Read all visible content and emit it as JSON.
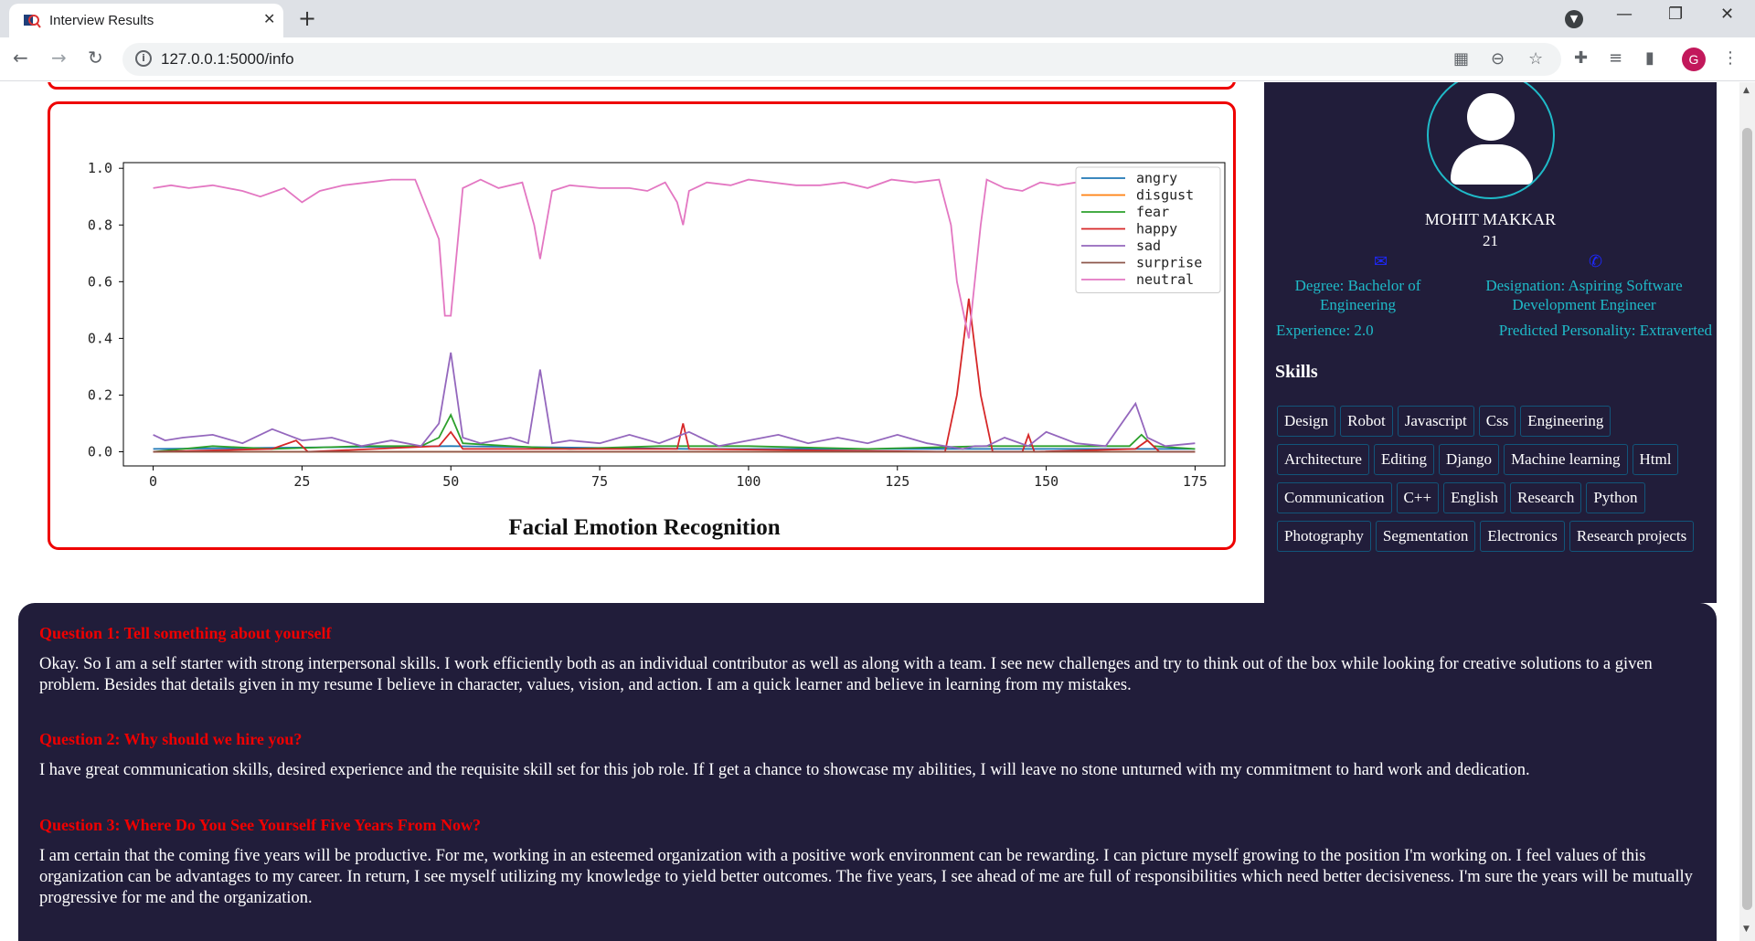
{
  "browser": {
    "tab_title": "Interview Results",
    "url": "127.0.0.1:5000/info",
    "profile_initial": "G"
  },
  "icons": {
    "favicon": "magnifier-favicon-icon",
    "tab_close": "close-icon",
    "new_tab": "plus-icon",
    "tab_search": "chevron-down-icon",
    "minimize": "minimize-icon",
    "restore": "restore-icon",
    "close_window": "close-icon",
    "back": "arrow-left-icon",
    "forward": "arrow-right-icon",
    "reload": "reload-icon",
    "site_info": "info-icon",
    "qr": "qr-code-icon",
    "zoom": "zoom-icon",
    "bookmark": "star-icon",
    "extensions": "puzzle-icon",
    "reading_list": "reading-list-icon",
    "side_panel": "side-panel-icon",
    "menu": "kebab-menu-icon",
    "email": "envelope-icon",
    "phone": "phone-icon",
    "user": "user-avatar-icon"
  },
  "colors": {
    "panel_bg": "#211d3a",
    "accent_teal": "#1fbac8",
    "question_red": "#e00000",
    "card_border": "#e00000"
  },
  "chart": {
    "title": "Facial Emotion Recognition",
    "chart_data": {
      "type": "line",
      "title": "",
      "xlabel": "",
      "ylabel": "",
      "xlim": [
        -5,
        180
      ],
      "ylim": [
        -0.05,
        1.02
      ],
      "x_ticks": [
        0,
        25,
        50,
        75,
        100,
        125,
        150,
        175
      ],
      "y_ticks": [
        0.0,
        0.2,
        0.4,
        0.6,
        0.8,
        1.0
      ],
      "grid": false,
      "legend_position": "top-right",
      "series": [
        {
          "name": "angry",
          "color": "#1f77b4",
          "points": [
            [
              0,
              0.01
            ],
            [
              50,
              0.02
            ],
            [
              90,
              0.01
            ],
            [
              137,
              0.01
            ],
            [
              175,
              0.01
            ]
          ]
        },
        {
          "name": "disgust",
          "color": "#ff7f0e",
          "points": [
            [
              0,
              0.0
            ],
            [
              175,
              0.0
            ]
          ]
        },
        {
          "name": "fear",
          "color": "#2ca02c",
          "points": [
            [
              0,
              0.0
            ],
            [
              10,
              0.02
            ],
            [
              20,
              0.01
            ],
            [
              35,
              0.02
            ],
            [
              45,
              0.02
            ],
            [
              48,
              0.05
            ],
            [
              50,
              0.13
            ],
            [
              52,
              0.03
            ],
            [
              60,
              0.02
            ],
            [
              70,
              0.01
            ],
            [
              85,
              0.02
            ],
            [
              100,
              0.02
            ],
            [
              120,
              0.01
            ],
            [
              140,
              0.02
            ],
            [
              164,
              0.02
            ],
            [
              166,
              0.06
            ],
            [
              168,
              0.02
            ],
            [
              175,
              0.01
            ]
          ]
        },
        {
          "name": "happy",
          "color": "#d62728",
          "points": [
            [
              0,
              0.0
            ],
            [
              20,
              0.01
            ],
            [
              24,
              0.04
            ],
            [
              26,
              0.0
            ],
            [
              48,
              0.02
            ],
            [
              50,
              0.07
            ],
            [
              52,
              0.01
            ],
            [
              88,
              0.01
            ],
            [
              89,
              0.1
            ],
            [
              90,
              0.01
            ],
            [
              133,
              0.0
            ],
            [
              135,
              0.2
            ],
            [
              137,
              0.54
            ],
            [
              139,
              0.2
            ],
            [
              141,
              0.0
            ],
            [
              146,
              0.0
            ],
            [
              147,
              0.06
            ],
            [
              148,
              0.0
            ],
            [
              165,
              0.01
            ],
            [
              167,
              0.04
            ],
            [
              169,
              0.0
            ],
            [
              175,
              0.0
            ]
          ]
        },
        {
          "name": "sad",
          "color": "#9467bd",
          "points": [
            [
              0,
              0.06
            ],
            [
              2,
              0.04
            ],
            [
              5,
              0.05
            ],
            [
              10,
              0.06
            ],
            [
              15,
              0.03
            ],
            [
              20,
              0.08
            ],
            [
              25,
              0.04
            ],
            [
              30,
              0.05
            ],
            [
              35,
              0.02
            ],
            [
              40,
              0.04
            ],
            [
              45,
              0.02
            ],
            [
              48,
              0.1
            ],
            [
              50,
              0.35
            ],
            [
              52,
              0.05
            ],
            [
              55,
              0.03
            ],
            [
              60,
              0.05
            ],
            [
              63,
              0.03
            ],
            [
              65,
              0.29
            ],
            [
              67,
              0.03
            ],
            [
              70,
              0.04
            ],
            [
              75,
              0.03
            ],
            [
              80,
              0.06
            ],
            [
              85,
              0.03
            ],
            [
              90,
              0.07
            ],
            [
              95,
              0.02
            ],
            [
              100,
              0.04
            ],
            [
              105,
              0.06
            ],
            [
              110,
              0.03
            ],
            [
              115,
              0.05
            ],
            [
              120,
              0.03
            ],
            [
              125,
              0.06
            ],
            [
              130,
              0.03
            ],
            [
              136,
              0.01
            ],
            [
              138,
              0.02
            ],
            [
              140,
              0.02
            ],
            [
              143,
              0.05
            ],
            [
              147,
              0.02
            ],
            [
              150,
              0.07
            ],
            [
              155,
              0.03
            ],
            [
              160,
              0.02
            ],
            [
              165,
              0.17
            ],
            [
              167,
              0.05
            ],
            [
              170,
              0.02
            ],
            [
              175,
              0.03
            ]
          ]
        },
        {
          "name": "surprise",
          "color": "#8c564b",
          "points": [
            [
              0,
              0.0
            ],
            [
              175,
              0.0
            ]
          ]
        },
        {
          "name": "neutral",
          "color": "#e377c2",
          "points": [
            [
              0,
              0.93
            ],
            [
              3,
              0.94
            ],
            [
              6,
              0.93
            ],
            [
              10,
              0.94
            ],
            [
              15,
              0.92
            ],
            [
              18,
              0.9
            ],
            [
              22,
              0.93
            ],
            [
              25,
              0.88
            ],
            [
              28,
              0.92
            ],
            [
              32,
              0.94
            ],
            [
              36,
              0.95
            ],
            [
              40,
              0.96
            ],
            [
              44,
              0.96
            ],
            [
              48,
              0.75
            ],
            [
              49,
              0.48
            ],
            [
              50,
              0.48
            ],
            [
              52,
              0.93
            ],
            [
              55,
              0.96
            ],
            [
              58,
              0.93
            ],
            [
              62,
              0.95
            ],
            [
              64,
              0.8
            ],
            [
              65,
              0.68
            ],
            [
              67,
              0.92
            ],
            [
              70,
              0.94
            ],
            [
              75,
              0.93
            ],
            [
              80,
              0.93
            ],
            [
              83,
              0.92
            ],
            [
              86,
              0.95
            ],
            [
              88,
              0.88
            ],
            [
              89,
              0.8
            ],
            [
              90,
              0.92
            ],
            [
              93,
              0.95
            ],
            [
              97,
              0.94
            ],
            [
              100,
              0.96
            ],
            [
              104,
              0.95
            ],
            [
              108,
              0.94
            ],
            [
              112,
              0.94
            ],
            [
              116,
              0.95
            ],
            [
              120,
              0.93
            ],
            [
              124,
              0.96
            ],
            [
              128,
              0.95
            ],
            [
              132,
              0.96
            ],
            [
              134,
              0.8
            ],
            [
              135,
              0.6
            ],
            [
              137,
              0.4
            ],
            [
              139,
              0.8
            ],
            [
              140,
              0.96
            ],
            [
              143,
              0.93
            ],
            [
              146,
              0.92
            ],
            [
              149,
              0.95
            ],
            [
              152,
              0.94
            ],
            [
              155,
              0.95
            ],
            [
              158,
              0.96
            ],
            [
              161,
              0.94
            ],
            [
              164,
              0.95
            ],
            [
              166,
              0.8
            ],
            [
              168,
              0.92
            ],
            [
              172,
              0.94
            ],
            [
              175,
              0.95
            ]
          ]
        }
      ]
    }
  },
  "profile": {
    "name": "MOHIT MAKKAR",
    "age": "21",
    "degree": "Degree: Bachelor of Engineering",
    "designation": "Designation: Aspiring Software Development Engineer",
    "experience": "Experience: 2.0",
    "personality": "Predicted Personality: Extraverted",
    "skills_heading": "Skills",
    "skills": [
      "Design",
      "Robot",
      "Javascript",
      "Css",
      "Engineering",
      "Architecture",
      "Editing",
      "Django",
      "Machine learning",
      "Html",
      "Communication",
      "C++",
      "English",
      "Research",
      "Python",
      "Photography",
      "Segmentation",
      "Electronics",
      "Research projects"
    ]
  },
  "questions": [
    {
      "title": "Question 1: Tell something about yourself",
      "answer": "Okay. So I am a self starter with strong interpersonal skills. I work efficiently both as an individual contributor as well as along with a team. I see new challenges and try to think out of the box while looking for creative solutions to a given problem. Besides that details given in my resume I believe in character, values, vision, and action. I am a quick learner and believe in learning from my mistakes."
    },
    {
      "title": "Question 2: Why should we hire you?",
      "answer": "I have great communication skills, desired experience and the requisite skill set for this job role. If I get a chance to showcase my abilities, I will leave no stone unturned with my commitment to hard work and dedication."
    },
    {
      "title": "Question 3: Where Do You See Yourself Five Years From Now?",
      "answer": "I am certain that the coming five years will be productive. For me, working in an esteemed organization with a positive work environment can be rewarding. I can picture myself growing to the position I'm working on. I feel values of this organization can be advantages to my career. In return, I see myself utilizing my knowledge to yield better outcomes. The five years, I see ahead of me are full of responsibilities which need better decisiveness. I'm sure the years will be mutually progressive for me and the organization."
    }
  ]
}
